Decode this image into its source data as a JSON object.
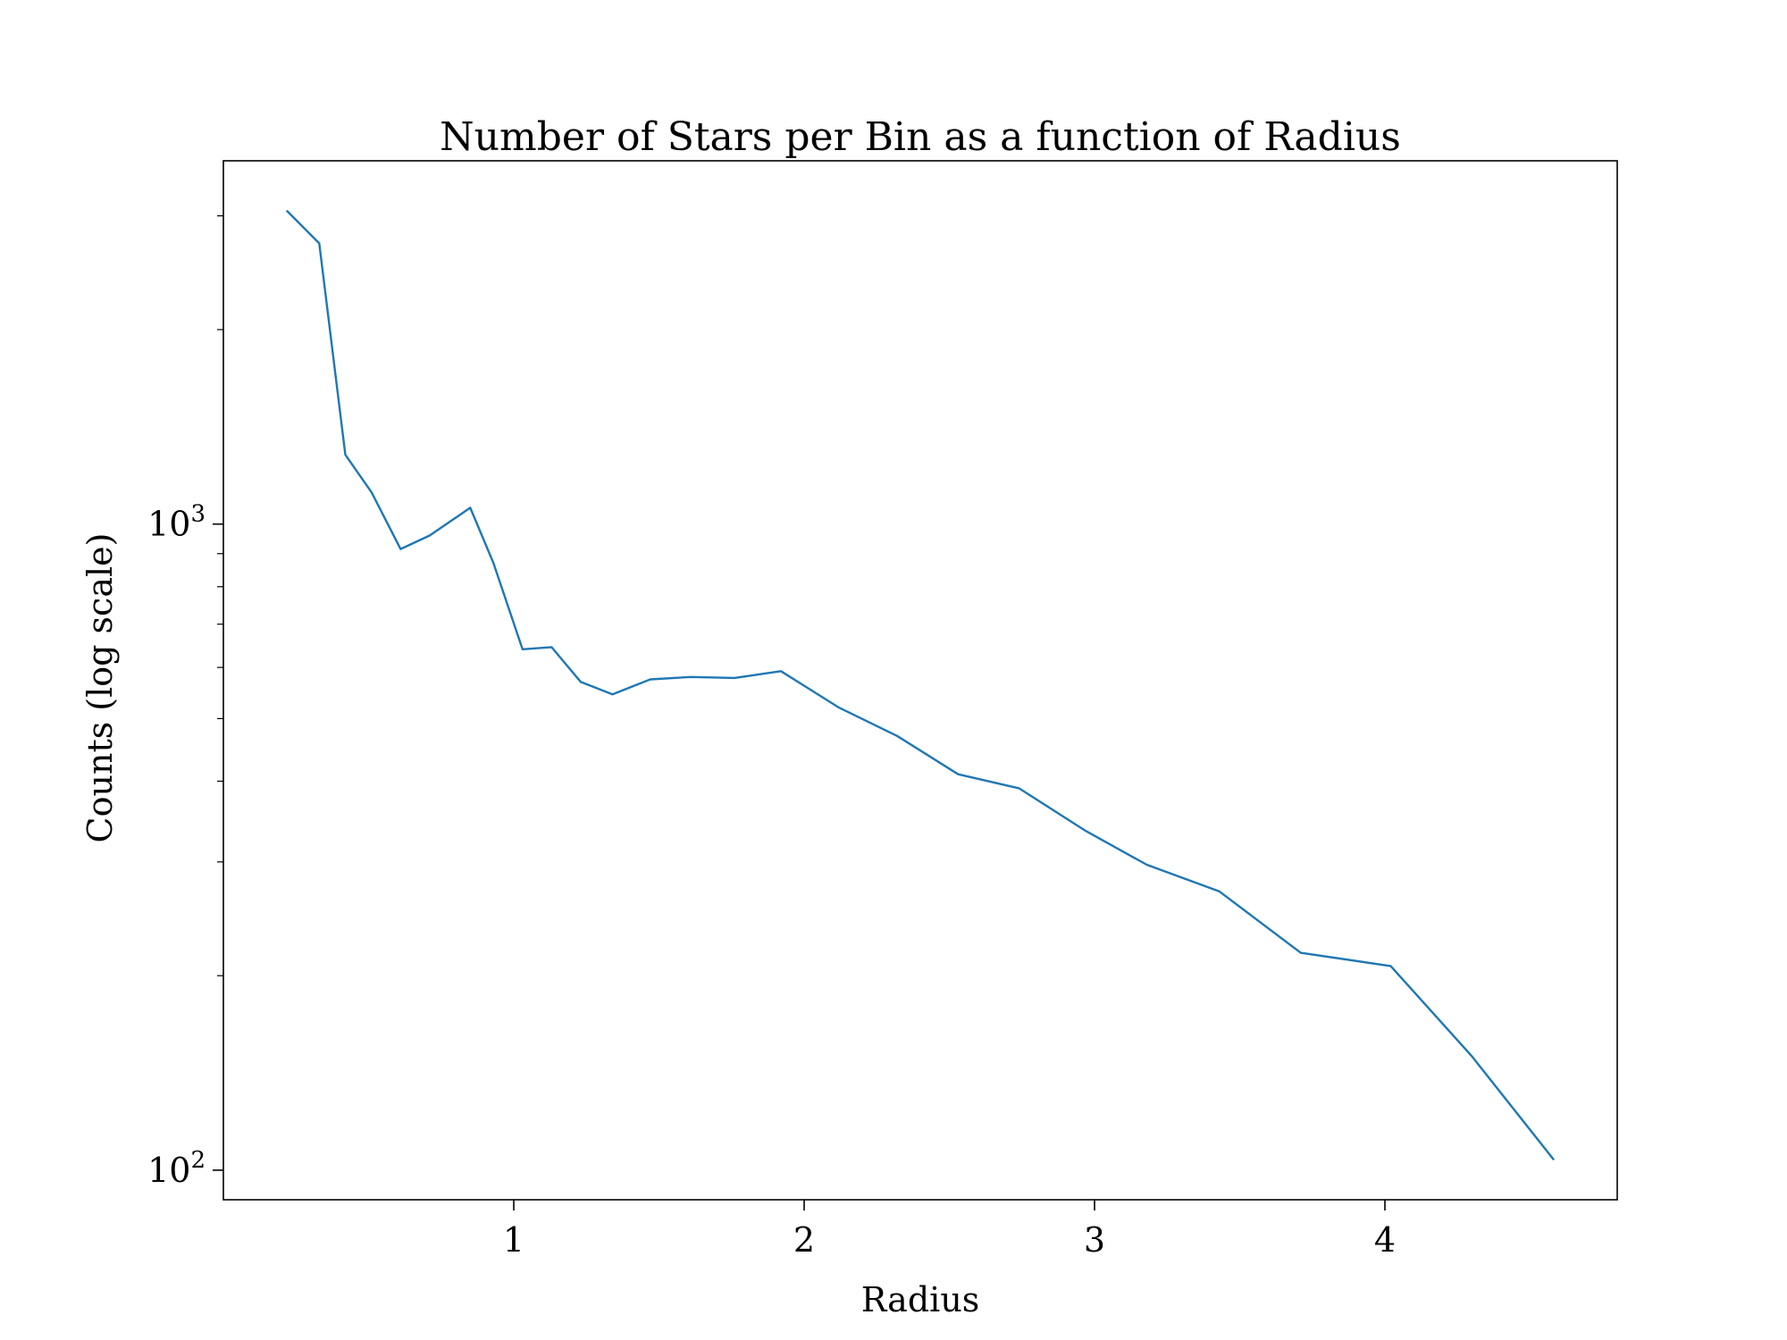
{
  "chart_data": {
    "type": "line",
    "title": "Number of Stars per Bin as a function of Radius",
    "xlabel": "Radius",
    "ylabel": "Counts (log scale)",
    "yscale": "log",
    "xlim": [
      0.0,
      4.8
    ],
    "ylim": [
      90,
      3650
    ],
    "x_ticks": [
      1,
      2,
      3,
      4
    ],
    "x_tick_labels": [
      "1",
      "2",
      "3",
      "4"
    ],
    "y_major_ticks": [
      100,
      1000
    ],
    "y_tick_labels": [
      {
        "base": "10",
        "exp": "2"
      },
      {
        "base": "10",
        "exp": "3"
      }
    ],
    "y_minor_ticks": [
      200,
      300,
      400,
      500,
      600,
      700,
      800,
      900,
      2000,
      3000
    ],
    "grid": false,
    "line_color": "#1f77b4",
    "series": [
      {
        "x": [
          0.22,
          0.33,
          0.42,
          0.51,
          0.61,
          0.71,
          0.85,
          0.93,
          1.03,
          1.13,
          1.23,
          1.34,
          1.47,
          1.61,
          1.76,
          1.92,
          2.12,
          2.32,
          2.53,
          2.74,
          2.97,
          3.18,
          3.43,
          3.71,
          4.02,
          4.3,
          4.58
        ],
        "y": [
          3050,
          2720,
          1280,
          1120,
          915,
          960,
          1060,
          870,
          640,
          645,
          570,
          545,
          575,
          580,
          578,
          592,
          520,
          470,
          410,
          390,
          335,
          297,
          270,
          217,
          207,
          150,
          104
        ]
      }
    ]
  }
}
